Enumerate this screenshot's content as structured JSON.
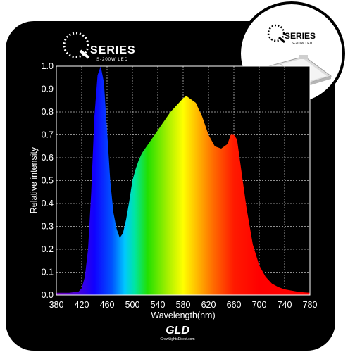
{
  "brand": {
    "series_word": "SERIES",
    "series_tagline": "S-200W LED",
    "inset_series_word": "SERIES",
    "inset_tagline": "S-200W LED",
    "footer_logo": "GLD",
    "footer_url": "GrowLightsDirect.com"
  },
  "colors": {
    "background": "#000000",
    "grid": "#bdbdbd",
    "text": "#ffffff"
  },
  "chart_data": {
    "type": "area",
    "title": "",
    "xlabel": "Wavelength(nm)",
    "ylabel": "Relative intensity",
    "xlim": [
      380,
      780
    ],
    "ylim": [
      0,
      1.0
    ],
    "grid": true,
    "x_ticks": [
      380,
      420,
      460,
      500,
      540,
      580,
      620,
      660,
      700,
      740,
      780
    ],
    "x_tick_labels": [
      "380",
      "420",
      "460",
      "500",
      "540",
      "580",
      "620",
      "660",
      "700",
      "740",
      "780"
    ],
    "y_ticks": [
      0,
      0.1,
      0.2,
      0.3,
      0.4,
      0.5,
      0.6,
      0.7,
      0.8,
      0.9,
      1.0
    ],
    "y_tick_labels": [
      "0.0",
      "0.1",
      "0.2",
      "0.3",
      "0.4",
      "0.5",
      "0.6",
      "0.7",
      "0.8",
      "0.9",
      "1.0"
    ],
    "series": [
      {
        "x": [
          380,
          400,
          415,
          420,
          425,
          430,
          435,
          440,
          445,
          450,
          455,
          460,
          465,
          470,
          475,
          480,
          485,
          490,
          495,
          500,
          505,
          510,
          515,
          520,
          530,
          540,
          550,
          560,
          570,
          580,
          585,
          590,
          600,
          610,
          620,
          630,
          640,
          650,
          655,
          660,
          665,
          670,
          680,
          690,
          700,
          710,
          720,
          730,
          740,
          750,
          760,
          770,
          780
        ],
        "y": [
          0.01,
          0.01,
          0.015,
          0.03,
          0.08,
          0.2,
          0.45,
          0.78,
          0.96,
          1.0,
          0.93,
          0.72,
          0.5,
          0.36,
          0.29,
          0.25,
          0.27,
          0.33,
          0.41,
          0.5,
          0.55,
          0.59,
          0.62,
          0.64,
          0.68,
          0.72,
          0.76,
          0.8,
          0.83,
          0.86,
          0.87,
          0.86,
          0.84,
          0.78,
          0.7,
          0.65,
          0.64,
          0.66,
          0.7,
          0.7,
          0.68,
          0.58,
          0.38,
          0.22,
          0.13,
          0.08,
          0.05,
          0.035,
          0.025,
          0.02,
          0.015,
          0.012,
          0.01
        ]
      }
    ]
  }
}
